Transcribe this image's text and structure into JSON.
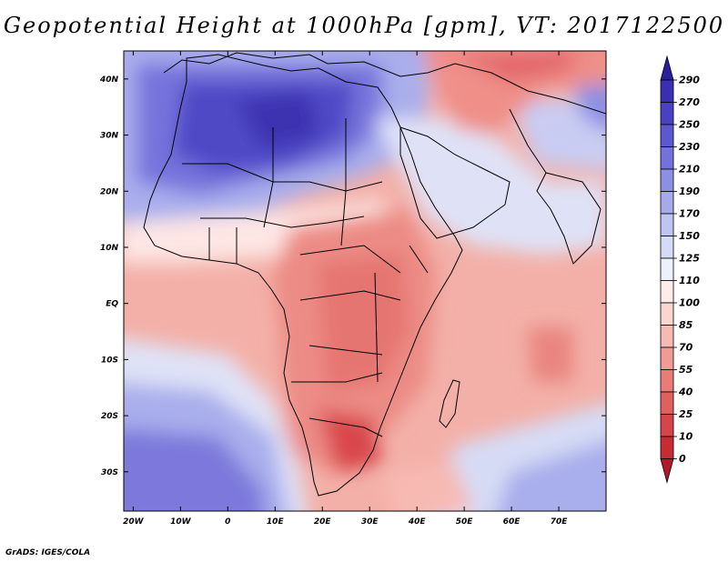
{
  "title": "Geopotential Height at 1000hPa [gpm], VT: 2017122500",
  "credit": "GrADS: IGES/COLA",
  "lat_labels": [
    "40N",
    "30N",
    "20N",
    "10N",
    "EQ",
    "10S",
    "20S",
    "30S"
  ],
  "lon_labels": [
    "20W",
    "10W",
    "0",
    "10E",
    "20E",
    "30E",
    "40E",
    "50E",
    "60E",
    "70E"
  ],
  "colorbar": {
    "levels": [
      "0",
      "10",
      "25",
      "40",
      "55",
      "70",
      "85",
      "100",
      "110",
      "125",
      "150",
      "170",
      "190",
      "210",
      "230",
      "250",
      "270",
      "290"
    ],
    "colors": [
      "#b2182b",
      "#c72c35",
      "#d6454b",
      "#e0605f",
      "#e97b78",
      "#f19b95",
      "#f7bab3",
      "#fbd6d0",
      "#fdecea",
      "#eef0fb",
      "#d6dbf5",
      "#bfc4f0",
      "#a6aaea",
      "#8d8fe3",
      "#7472da",
      "#5c58cf",
      "#4a40c2",
      "#3a2eb2",
      "#2a1f9c"
    ]
  },
  "chart_data": {
    "type": "heatmap",
    "title": "Geopotential Height at 1000hPa [gpm], VT: 2017122500",
    "variable": "Geopotential Height",
    "units": "gpm",
    "level": "1000hPa",
    "valid_time": "2017122500",
    "lon_range": [
      -22,
      80
    ],
    "lat_range": [
      -37,
      45
    ],
    "colorbar_levels": [
      0,
      10,
      25,
      40,
      55,
      70,
      85,
      100,
      110,
      125,
      150,
      170,
      190,
      210,
      230,
      250,
      270,
      290
    ]
  }
}
